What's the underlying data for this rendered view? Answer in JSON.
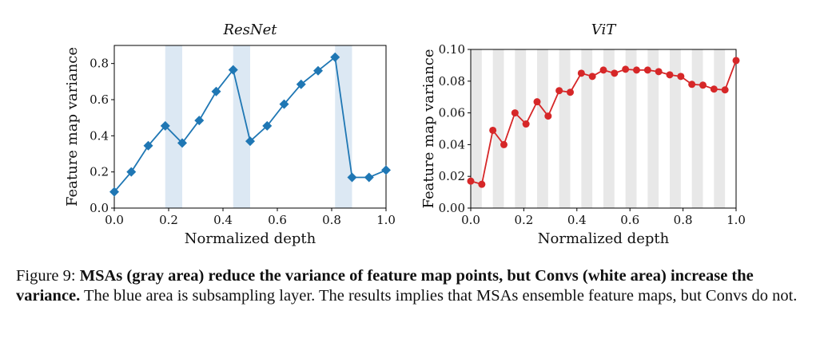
{
  "chart_data": [
    {
      "type": "line",
      "title": "ResNet",
      "xlabel": "Normalized depth",
      "ylabel": "Feature map variance",
      "xlim": [
        0,
        1
      ],
      "ylim": [
        0,
        0.9
      ],
      "xticks": [
        "0.0",
        "0.2",
        "0.4",
        "0.6",
        "0.8",
        "1.0"
      ],
      "yticks": [
        "0.0",
        "0.2",
        "0.4",
        "0.6",
        "0.8"
      ],
      "color": "#1f77b4",
      "marker": "diamond",
      "band_color": "#dce8f3",
      "bands": [
        [
          0.1875,
          0.25
        ],
        [
          0.4375,
          0.5
        ],
        [
          0.8125,
          0.875
        ]
      ],
      "x": [
        0,
        0.0625,
        0.125,
        0.1875,
        0.25,
        0.3125,
        0.375,
        0.4375,
        0.5,
        0.5625,
        0.625,
        0.6875,
        0.75,
        0.8125,
        0.875,
        0.9375,
        1.0
      ],
      "y": [
        0.09,
        0.2,
        0.345,
        0.455,
        0.36,
        0.485,
        0.645,
        0.765,
        0.37,
        0.455,
        0.575,
        0.685,
        0.76,
        0.835,
        0.17,
        0.17,
        0.21
      ]
    },
    {
      "type": "line",
      "title": "ViT",
      "xlabel": "Normalized depth",
      "ylabel": "Feature map variance",
      "xlim": [
        0,
        1
      ],
      "ylim": [
        0,
        0.1
      ],
      "xticks": [
        "0.0",
        "0.2",
        "0.4",
        "0.6",
        "0.8",
        "1.0"
      ],
      "yticks": [
        "0.00",
        "0.02",
        "0.04",
        "0.06",
        "0.08",
        "0.10"
      ],
      "color": "#d62728",
      "marker": "circle",
      "band_color": "#e8e8e8",
      "bands": [
        [
          0,
          0.0417
        ],
        [
          0.0833,
          0.125
        ],
        [
          0.1667,
          0.2083
        ],
        [
          0.25,
          0.2917
        ],
        [
          0.3333,
          0.375
        ],
        [
          0.4167,
          0.4583
        ],
        [
          0.5,
          0.5417
        ],
        [
          0.5833,
          0.625
        ],
        [
          0.6667,
          0.7083
        ],
        [
          0.75,
          0.7917
        ],
        [
          0.8333,
          0.875
        ],
        [
          0.9167,
          0.9583
        ]
      ],
      "x": [
        0,
        0.0417,
        0.0833,
        0.125,
        0.1667,
        0.2083,
        0.25,
        0.2917,
        0.3333,
        0.375,
        0.4167,
        0.4583,
        0.5,
        0.5417,
        0.5833,
        0.625,
        0.6667,
        0.7083,
        0.75,
        0.7917,
        0.8333,
        0.875,
        0.9167,
        0.9583,
        1.0
      ],
      "y": [
        0.017,
        0.015,
        0.049,
        0.04,
        0.06,
        0.053,
        0.067,
        0.058,
        0.074,
        0.073,
        0.085,
        0.083,
        0.087,
        0.085,
        0.0875,
        0.087,
        0.087,
        0.086,
        0.084,
        0.083,
        0.078,
        0.0775,
        0.075,
        0.0745,
        0.093
      ]
    }
  ],
  "caption": {
    "label": "Figure 9: ",
    "bold": "MSAs (gray area) reduce the variance of feature map points, but Convs (white area) increase the variance.",
    "rest": " The blue area is subsampling layer. The results implies that MSAs ensemble feature maps, but Convs do not."
  }
}
